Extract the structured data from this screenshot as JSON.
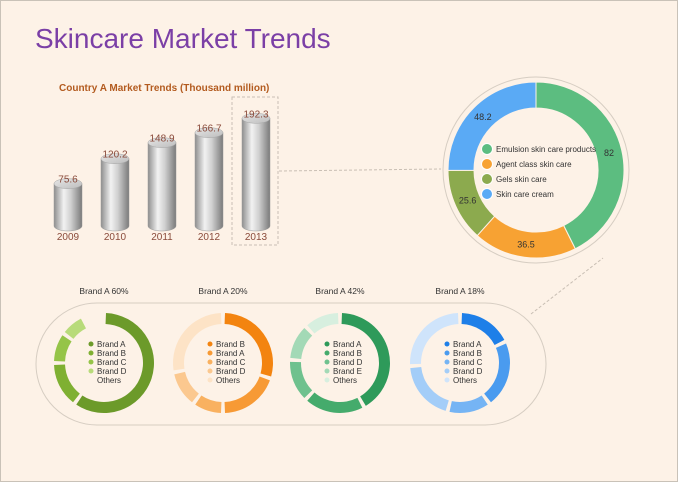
{
  "page": {
    "title": "Skincare Market Trends"
  },
  "chart_data": [
    {
      "type": "bar",
      "title": "Country A Market Trends (Thousand million)",
      "categories": [
        "2009",
        "2010",
        "2011",
        "2012",
        "2013"
      ],
      "values": [
        75.6,
        120.2,
        148.9,
        166.7,
        192.3
      ],
      "highlight": "2013"
    },
    {
      "type": "pie",
      "style": "donut",
      "labels": [
        "Emulsion skin care products",
        "Agent class skin care",
        "Gels skin care",
        "Skin care cream"
      ],
      "values": [
        82,
        36.5,
        25.6,
        48.2
      ],
      "colors": [
        "#5cbd80",
        "#f7a233",
        "#8caa4e",
        "#5aaaf5"
      ]
    },
    {
      "type": "pie",
      "style": "donut",
      "title": "Brand A 60%",
      "labels": [
        "Brand A",
        "Brand B",
        "Brand C",
        "Brand D",
        "Others"
      ],
      "values": [
        60,
        15,
        10,
        8,
        7
      ],
      "colors": [
        "#6c9a2a",
        "#7fb032",
        "#95c448",
        "#b8db7a",
        "#fdf2e7"
      ]
    },
    {
      "type": "pie",
      "style": "donut",
      "title": "Brand A 20%",
      "labels": [
        "Brand B",
        "Brand A",
        "Brand C",
        "Brand D",
        "Others"
      ],
      "values": [
        30,
        20,
        10,
        12,
        28
      ],
      "colors": [
        "#f38410",
        "#f79a35",
        "#f9b160",
        "#fbc88f",
        "#fde3c6"
      ]
    },
    {
      "type": "pie",
      "style": "donut",
      "title": "Brand A 42%",
      "labels": [
        "Brand A",
        "Brand B",
        "Brand D",
        "Brand E",
        "Others"
      ],
      "values": [
        42,
        20,
        14,
        12,
        12
      ],
      "colors": [
        "#2e9a5a",
        "#45ab6c",
        "#6fc18e",
        "#a3d9b6",
        "#d7efdf"
      ]
    },
    {
      "type": "pie",
      "style": "donut",
      "title": "Brand A 18%",
      "labels": [
        "Brand A",
        "Brand B",
        "Brand C",
        "Brand D",
        "Others"
      ],
      "values": [
        18,
        22,
        14,
        20,
        26
      ],
      "colors": [
        "#1e7fe8",
        "#4a9bef",
        "#75b4f4",
        "#a3cdf8",
        "#cfe4fb"
      ]
    }
  ]
}
